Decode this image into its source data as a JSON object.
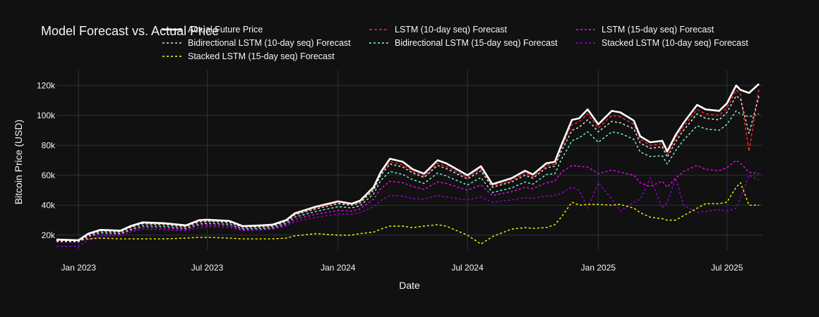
{
  "chart_data": {
    "type": "line",
    "title": "Model Forecast vs. Actual Price",
    "xlabel": "Date",
    "ylabel": "Bitcoin Price (USD)",
    "xlim": [
      "2022-12-01",
      "2025-08-20"
    ],
    "ylim": [
      10000,
      130000
    ],
    "x_ticks": [
      {
        "date": "2023-01-01",
        "label": "Jan 2023"
      },
      {
        "date": "2023-07-01",
        "label": "Jul 2023"
      },
      {
        "date": "2024-01-01",
        "label": "Jan 2024"
      },
      {
        "date": "2024-07-01",
        "label": "Jul 2024"
      },
      {
        "date": "2025-01-01",
        "label": "Jan 2025"
      },
      {
        "date": "2025-07-01",
        "label": "Jul 2025"
      }
    ],
    "y_ticks": [
      {
        "value": 20000,
        "label": "20k"
      },
      {
        "value": 40000,
        "label": "40k"
      },
      {
        "value": 60000,
        "label": "60k"
      },
      {
        "value": 80000,
        "label": "80k"
      },
      {
        "value": 100000,
        "label": "100k"
      },
      {
        "value": 120000,
        "label": "120k"
      }
    ],
    "grid": true,
    "legend": "top",
    "dates": [
      "2022-12-01",
      "2023-01-01",
      "2023-01-15",
      "2023-02-01",
      "2023-03-01",
      "2023-03-15",
      "2023-04-01",
      "2023-05-01",
      "2023-06-01",
      "2023-06-20",
      "2023-07-01",
      "2023-08-01",
      "2023-08-20",
      "2023-09-15",
      "2023-10-01",
      "2023-10-20",
      "2023-11-01",
      "2023-12-01",
      "2024-01-01",
      "2024-01-20",
      "2024-02-01",
      "2024-02-20",
      "2024-03-01",
      "2024-03-14",
      "2024-04-01",
      "2024-04-15",
      "2024-05-01",
      "2024-05-20",
      "2024-06-01",
      "2024-07-01",
      "2024-07-20",
      "2024-08-05",
      "2024-09-01",
      "2024-09-20",
      "2024-10-01",
      "2024-10-20",
      "2024-11-01",
      "2024-11-10",
      "2024-11-25",
      "2024-12-05",
      "2024-12-17",
      "2025-01-01",
      "2025-01-20",
      "2025-02-01",
      "2025-02-20",
      "2025-03-01",
      "2025-03-15",
      "2025-04-01",
      "2025-04-08",
      "2025-04-20",
      "2025-05-01",
      "2025-05-20",
      "2025-06-01",
      "2025-06-20",
      "2025-07-01",
      "2025-07-14",
      "2025-07-20",
      "2025-08-01",
      "2025-08-15"
    ],
    "series": [
      {
        "name": "Actual Future Price",
        "color": "#ffffff",
        "dash": "solid",
        "width": 2.6,
        "values": [
          17000,
          16600,
          21000,
          23500,
          23000,
          26000,
          28500,
          28000,
          26500,
          30000,
          30300,
          29500,
          26000,
          26500,
          27000,
          30000,
          34500,
          39000,
          42500,
          41000,
          43000,
          52000,
          62000,
          71000,
          69000,
          64000,
          61000,
          70000,
          68000,
          60000,
          66000,
          54000,
          58000,
          63000,
          60500,
          68000,
          69000,
          80000,
          97000,
          98000,
          104000,
          94000,
          103000,
          102000,
          96500,
          86000,
          82000,
          83000,
          76000,
          87000,
          95000,
          107000,
          104000,
          103000,
          108000,
          120000,
          117000,
          115000,
          121000
        ]
      },
      {
        "name": "Bidirectional LSTM (10-day seq) Forecast",
        "color": "#dddddd",
        "dash": "3,3",
        "width": 1.5,
        "values": [
          16200,
          16000,
          20200,
          22800,
          22000,
          25000,
          27500,
          27000,
          25600,
          28800,
          29200,
          28500,
          25200,
          25500,
          26000,
          29000,
          33500,
          37500,
          41000,
          40000,
          41500,
          50000,
          60000,
          67500,
          65500,
          61500,
          58500,
          66500,
          64500,
          57500,
          63000,
          52000,
          55500,
          60000,
          58000,
          65000,
          66000,
          76000,
          90000,
          92000,
          97000,
          89000,
          96000,
          95000,
          91000,
          81500,
          78000,
          79000,
          72000,
          82500,
          90000,
          101000,
          98000,
          97000,
          102000,
          113000,
          111000,
          88000,
          113000
        ]
      },
      {
        "name": "Stacked LSTM (15-day seq) Forecast",
        "color": "#ffff00",
        "dash": "3,3",
        "width": 1.4,
        "values": [
          16000,
          16500,
          17500,
          18000,
          17500,
          17500,
          17500,
          17500,
          18000,
          18500,
          18500,
          18000,
          17500,
          17500,
          17500,
          18000,
          19500,
          21000,
          20000,
          20000,
          21000,
          22000,
          24000,
          26000,
          26000,
          25000,
          26000,
          27000,
          26000,
          20000,
          14000,
          19000,
          24000,
          25000,
          24500,
          25000,
          27000,
          32000,
          42000,
          40000,
          40500,
          40500,
          40000,
          40500,
          38000,
          35000,
          32000,
          31000,
          30000,
          30000,
          33000,
          38000,
          41000,
          41000,
          42000,
          52000,
          55000,
          40000,
          40000
        ]
      },
      {
        "name": "LSTM (10-day seq) Forecast",
        "color": "#ff2020",
        "dash": "4,3",
        "width": 1.5,
        "values": [
          16400,
          16300,
          20500,
          23000,
          22300,
          25400,
          27800,
          27400,
          25900,
          29200,
          29600,
          28900,
          25600,
          25900,
          26400,
          29400,
          33900,
          38200,
          41700,
          40400,
          42200,
          51000,
          61000,
          69000,
          67000,
          62500,
          59500,
          68000,
          66000,
          58500,
          64500,
          53000,
          56500,
          61500,
          59000,
          66500,
          67500,
          78000,
          94000,
          95500,
          101000,
          91500,
          100000,
          99000,
          94000,
          84000,
          80000,
          81000,
          74000,
          85000,
          92500,
          104000,
          101000,
          100000,
          105000,
          117000,
          114000,
          76000,
          118000
        ]
      },
      {
        "name": "Bidirectional LSTM (15-day seq) Forecast",
        "color": "#7fffd4",
        "dash": "3,3",
        "width": 1.4,
        "values": [
          15800,
          15600,
          19300,
          21800,
          21000,
          23700,
          26200,
          25800,
          24500,
          27500,
          27900,
          27300,
          24200,
          24500,
          25000,
          27800,
          32000,
          35800,
          39000,
          38200,
          39500,
          47500,
          56500,
          62500,
          60500,
          57000,
          54500,
          61500,
          59500,
          53500,
          58500,
          48500,
          51500,
          55500,
          54000,
          60500,
          61000,
          70500,
          83000,
          85000,
          89000,
          82000,
          89000,
          88000,
          84000,
          75500,
          72500,
          73000,
          67500,
          76500,
          83500,
          93000,
          91000,
          90000,
          94000,
          103000,
          101000,
          99000,
          101000
        ]
      },
      {
        "name": "LSTM (15-day seq) Forecast",
        "color": "#ff00ff",
        "dash": "3,3",
        "width": 1.4,
        "values": [
          15500,
          15300,
          18800,
          21000,
          20500,
          23000,
          25200,
          24800,
          23800,
          26500,
          26800,
          26300,
          23500,
          23800,
          24200,
          26800,
          30500,
          34000,
          36500,
          36000,
          37500,
          44000,
          51000,
          56000,
          55000,
          52500,
          50500,
          55500,
          54500,
          50000,
          53500,
          46500,
          49000,
          52000,
          51000,
          55000,
          56000,
          62000,
          66500,
          66000,
          65500,
          61000,
          63500,
          62000,
          60000,
          55000,
          52500,
          56000,
          52000,
          58000,
          62500,
          66500,
          64000,
          63000,
          65000,
          70000,
          68000,
          62000,
          61000
        ]
      },
      {
        "name": "Stacked LSTM (10-day seq) Forecast",
        "color": "#9400d3",
        "dash": "3,3",
        "width": 1.4,
        "values": [
          12500,
          12500,
          17000,
          19500,
          19500,
          22000,
          24000,
          23500,
          23000,
          25000,
          25500,
          25200,
          23000,
          23500,
          24000,
          26000,
          29000,
          32000,
          34000,
          34000,
          35000,
          39000,
          43000,
          46500,
          46000,
          44500,
          44000,
          46500,
          45500,
          43500,
          45500,
          42000,
          43500,
          45000,
          44500,
          46000,
          46500,
          48000,
          52000,
          50000,
          38000,
          55000,
          44000,
          36000,
          42000,
          44000,
          58000,
          38000,
          42000,
          58000,
          40000,
          35000,
          36000,
          37000,
          36000,
          38000,
          45000,
          60000,
          57000
        ]
      }
    ]
  }
}
